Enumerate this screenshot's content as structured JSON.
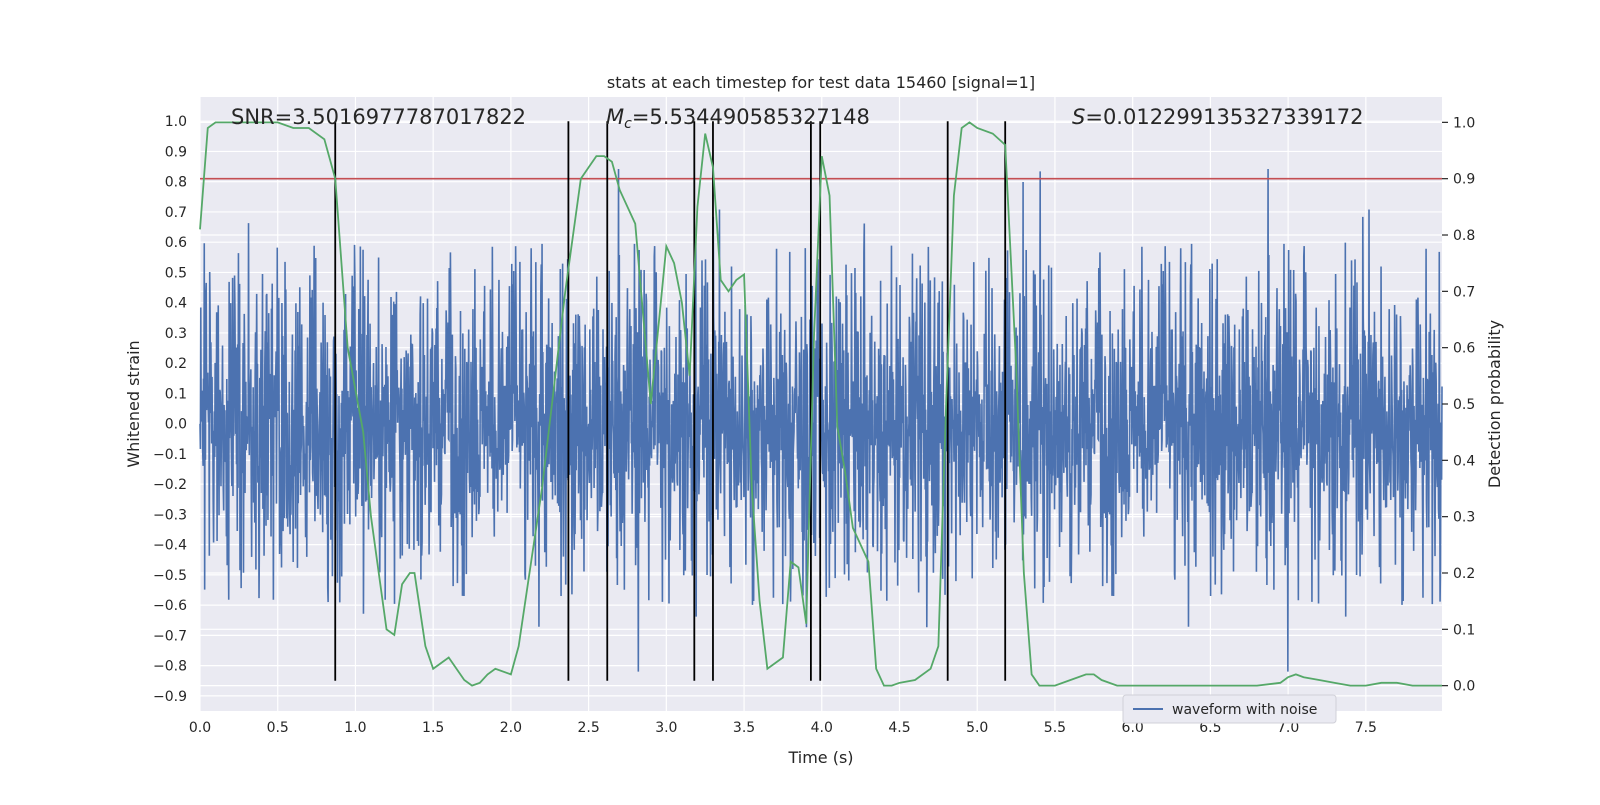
{
  "chart_data": {
    "type": "line",
    "title": "stats at each timestep for test data 15460 [signal=1]",
    "xlabel": "Time (s)",
    "ylabel": "Whitened strain",
    "y2label": "Detection probability",
    "xlim": [
      0.0,
      7.99
    ],
    "ylim": [
      -0.95,
      1.08
    ],
    "y2lim": [
      -0.045,
      1.045
    ],
    "x_ticks": [
      0.0,
      0.5,
      1.0,
      1.5,
      2.0,
      2.5,
      3.0,
      3.5,
      4.0,
      4.5,
      5.0,
      5.5,
      6.0,
      6.5,
      7.0,
      7.5
    ],
    "x_tick_labels": [
      "0.0",
      "0.5",
      "1.0",
      "1.5",
      "2.0",
      "2.5",
      "3.0",
      "3.5",
      "4.0",
      "4.5",
      "5.0",
      "5.5",
      "6.0",
      "6.5",
      "7.0",
      "7.5"
    ],
    "y_ticks": [
      1.0,
      0.9,
      0.8,
      0.7,
      0.6,
      0.5,
      0.4,
      0.3,
      0.2,
      0.1,
      0.0,
      -0.1,
      -0.2,
      -0.3,
      -0.4,
      -0.5,
      -0.6,
      -0.7,
      -0.8,
      -0.9
    ],
    "y_tick_labels": [
      "1.0",
      "0.9",
      "0.8",
      "0.7",
      "0.6",
      "0.5",
      "0.4",
      "0.3",
      "0.2",
      "0.1",
      "0.0",
      "−0.1",
      "−0.2",
      "−0.3",
      "−0.4",
      "−0.5",
      "−0.6",
      "−0.7",
      "−0.8",
      "−0.9"
    ],
    "y2_ticks": [
      1.0,
      0.9,
      0.8,
      0.7,
      0.6,
      0.5,
      0.4,
      0.3,
      0.2,
      0.1,
      0.0
    ],
    "y2_tick_labels": [
      "1.0",
      "0.9",
      "0.8",
      "0.7",
      "0.6",
      "0.5",
      "0.4",
      "0.3",
      "0.2",
      "0.1",
      "0.0"
    ],
    "grid": true,
    "legend": {
      "placement": "bottom-right",
      "entries": [
        "waveform with noise"
      ]
    },
    "annotations": {
      "snr": "SNR=3.5016977787017822",
      "mc_symbol": "M",
      "mc_sub": "c",
      "mc_value": "=5.534490585327148",
      "s_symbol": "S",
      "s_value": "=0.012299135327339172"
    },
    "threshold": {
      "axis": "y2",
      "value": 0.9
    },
    "vertical_lines": [
      0.87,
      2.37,
      2.62,
      3.18,
      3.3,
      3.93,
      3.99,
      4.81,
      5.18
    ],
    "vertical_lines_ymax": 1.0,
    "vertical_lines_ymin": -0.85,
    "waveform": {
      "name": "waveform with noise",
      "samples": 3200,
      "core_amplitude": 0.3,
      "peak_amplitude": 0.6,
      "max_value": 0.96,
      "min_value": -0.82
    },
    "series": [
      {
        "name": "detection probability",
        "axis": "y2",
        "x": [
          0.0,
          0.05,
          0.1,
          0.2,
          0.3,
          0.4,
          0.5,
          0.6,
          0.7,
          0.8,
          0.87,
          0.95,
          1.05,
          1.1,
          1.2,
          1.25,
          1.3,
          1.35,
          1.38,
          1.45,
          1.5,
          1.6,
          1.7,
          1.75,
          1.8,
          1.85,
          1.9,
          2.0,
          2.05,
          2.2,
          2.35,
          2.45,
          2.5,
          2.55,
          2.6,
          2.65,
          2.7,
          2.8,
          2.9,
          3.0,
          3.05,
          3.1,
          3.15,
          3.2,
          3.25,
          3.3,
          3.35,
          3.4,
          3.45,
          3.5,
          3.55,
          3.6,
          3.65,
          3.7,
          3.75,
          3.8,
          3.85,
          3.9,
          3.95,
          4.0,
          4.05,
          4.1,
          4.15,
          4.2,
          4.3,
          4.35,
          4.4,
          4.45,
          4.5,
          4.6,
          4.7,
          4.75,
          4.8,
          4.85,
          4.9,
          4.95,
          5.0,
          5.1,
          5.18,
          5.25,
          5.3,
          5.35,
          5.4,
          5.5,
          5.6,
          5.7,
          5.75,
          5.8,
          5.9,
          6.0,
          6.2,
          6.4,
          6.6,
          6.8,
          6.95,
          7.0,
          7.05,
          7.1,
          7.2,
          7.3,
          7.4,
          7.5,
          7.6,
          7.7,
          7.8,
          7.99
        ],
        "values": [
          0.81,
          0.99,
          1.0,
          1.0,
          1.0,
          1.0,
          1.0,
          0.99,
          0.99,
          0.97,
          0.9,
          0.6,
          0.45,
          0.3,
          0.1,
          0.09,
          0.18,
          0.2,
          0.2,
          0.07,
          0.03,
          0.05,
          0.01,
          0.0,
          0.005,
          0.02,
          0.03,
          0.02,
          0.07,
          0.35,
          0.7,
          0.9,
          0.92,
          0.94,
          0.94,
          0.93,
          0.88,
          0.82,
          0.5,
          0.78,
          0.75,
          0.68,
          0.55,
          0.85,
          0.98,
          0.92,
          0.72,
          0.7,
          0.72,
          0.73,
          0.35,
          0.15,
          0.03,
          0.04,
          0.05,
          0.22,
          0.21,
          0.11,
          0.62,
          0.94,
          0.87,
          0.46,
          0.38,
          0.28,
          0.22,
          0.03,
          0.0,
          0.0,
          0.005,
          0.01,
          0.03,
          0.07,
          0.5,
          0.87,
          0.99,
          1.0,
          0.99,
          0.98,
          0.96,
          0.57,
          0.2,
          0.02,
          0.0,
          0.0,
          0.01,
          0.02,
          0.02,
          0.01,
          0.0,
          0.0,
          0.0,
          0.0,
          0.0,
          0.0,
          0.005,
          0.015,
          0.02,
          0.015,
          0.01,
          0.005,
          0.0,
          0.0,
          0.005,
          0.005,
          0.0,
          0.0
        ]
      }
    ],
    "colors": {
      "background": "#eaeaf2",
      "grid": "#ffffff",
      "waveform": "#4c72b0",
      "probability": "#55a868",
      "threshold": "#c44e52",
      "vertical_lines": "#000000"
    }
  }
}
